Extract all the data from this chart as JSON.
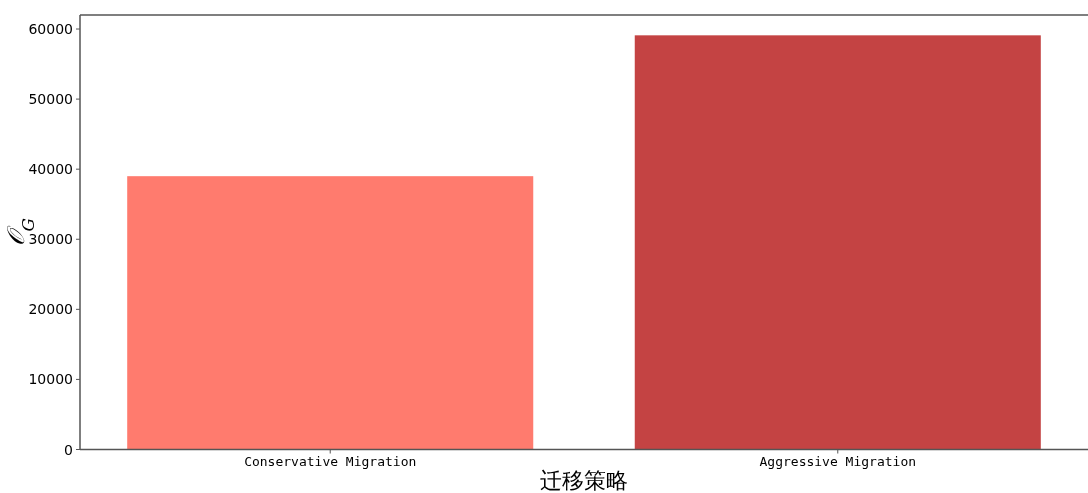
{
  "chart_data": {
    "type": "bar",
    "xlabel": "迁移策略",
    "ylabel": "𝒪$_{G}$",
    "categories": [
      "Conservative Migration",
      "Aggressive Migration"
    ],
    "values": [
      39000,
      59100
    ],
    "colors": [
      "#ff7b6e",
      "#c44343"
    ],
    "ylim": [
      0,
      62000
    ],
    "yticks": [
      0,
      10000,
      20000,
      30000,
      40000,
      50000,
      60000
    ],
    "grid": false
  }
}
